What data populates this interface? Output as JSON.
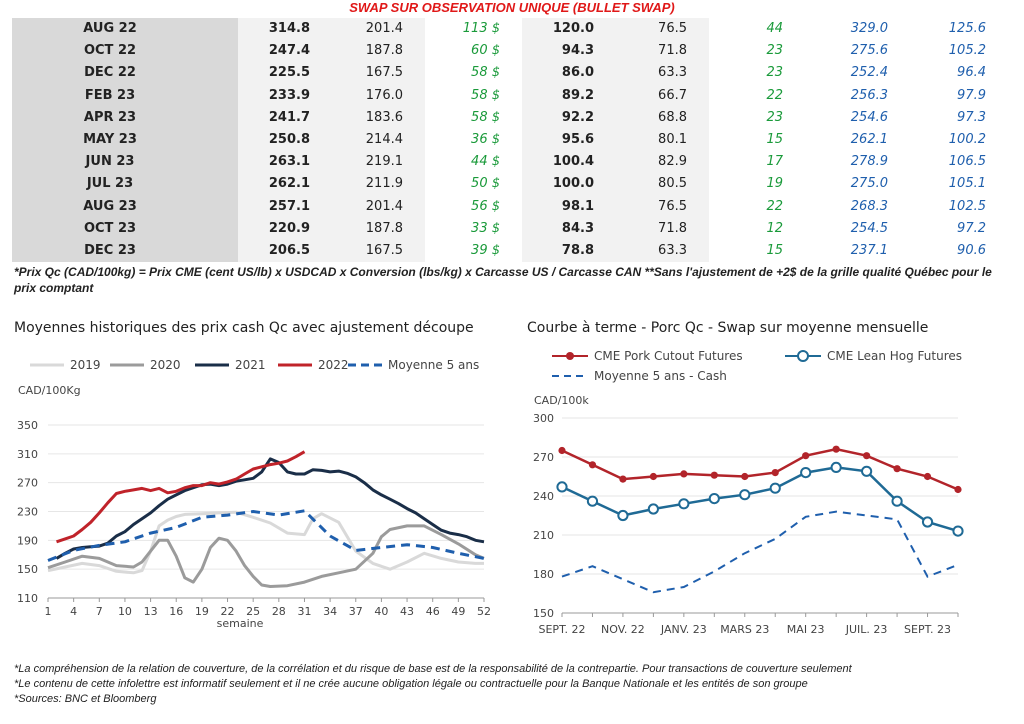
{
  "header": {
    "title": "SWAP SUR OBSERVATION UNIQUE (BULLET SWAP)",
    "note": "*Prix Qc (CAD/100kg) = Prix CME (cent US/lb) x USDCAD x Conversion (lbs/kg) x Carcasse US / Carcasse CAN **Sans l'ajustement de +2$ de la grille qualité Québec pour le prix comptant"
  },
  "table": {
    "rows": [
      [
        "AUG 22",
        "314.8",
        "201.4",
        "113 $",
        "120.0",
        "76.5",
        "44",
        "329.0",
        "125.6"
      ],
      [
        "OCT 22",
        "247.4",
        "187.8",
        "60 $",
        "94.3",
        "71.8",
        "23",
        "275.6",
        "105.2"
      ],
      [
        "DEC 22",
        "225.5",
        "167.5",
        "58 $",
        "86.0",
        "63.3",
        "23",
        "252.4",
        "96.4"
      ],
      [
        "FEB 23",
        "233.9",
        "176.0",
        "58 $",
        "89.2",
        "66.7",
        "22",
        "256.3",
        "97.9"
      ],
      [
        "APR 23",
        "241.7",
        "183.6",
        "58 $",
        "92.2",
        "68.8",
        "23",
        "254.6",
        "97.3"
      ],
      [
        "MAY 23",
        "250.8",
        "214.4",
        "36 $",
        "95.6",
        "80.1",
        "15",
        "262.1",
        "100.2"
      ],
      [
        "JUN 23",
        "263.1",
        "219.1",
        "44 $",
        "100.4",
        "82.9",
        "17",
        "278.9",
        "106.5"
      ],
      [
        "JUL 23",
        "262.1",
        "211.9",
        "50 $",
        "100.0",
        "80.5",
        "19",
        "275.0",
        "105.1"
      ],
      [
        "AUG 23",
        "257.1",
        "201.4",
        "56 $",
        "98.1",
        "76.5",
        "22",
        "268.3",
        "102.5"
      ],
      [
        "OCT 23",
        "220.9",
        "187.8",
        "33 $",
        "84.3",
        "71.8",
        "12",
        "254.5",
        "97.2"
      ],
      [
        "DEC 23",
        "206.5",
        "167.5",
        "39 $",
        "78.8",
        "63.3",
        "15",
        "237.1",
        "90.6"
      ]
    ]
  },
  "chart_data": [
    {
      "type": "line",
      "title": "Moyennes historiques des prix cash Qc avec ajustement découpe",
      "ylabel": "CAD/100Kg",
      "xlabel": "semaine",
      "ylim": [
        110,
        350
      ],
      "yticks": [
        "350",
        "310",
        "270",
        "230",
        "190",
        "150",
        "110"
      ],
      "xlim": [
        1,
        52
      ],
      "xticks": [
        "1",
        "4",
        "7",
        "10",
        "13",
        "16",
        "19",
        "22",
        "25",
        "28",
        "31",
        "34",
        "37",
        "40",
        "43",
        "46",
        "49",
        "52"
      ],
      "legend_position": "top",
      "grid": "horizontal",
      "series": [
        {
          "name": "2019",
          "color": "#d9d9d9",
          "dash": false,
          "x": [
            1,
            3,
            5,
            7,
            9,
            11,
            12,
            13,
            14,
            15,
            16,
            17,
            19,
            21,
            23,
            25,
            27,
            29,
            31,
            32,
            33,
            35,
            37,
            39,
            41,
            43,
            45,
            47,
            49,
            51,
            52
          ],
          "y": [
            148,
            153,
            158,
            155,
            147,
            145,
            148,
            175,
            210,
            218,
            223,
            226,
            227,
            228,
            229,
            222,
            214,
            200,
            198,
            220,
            227,
            215,
            175,
            158,
            150,
            160,
            172,
            165,
            160,
            158,
            158
          ]
        },
        {
          "name": "2020",
          "color": "#9b9b9b",
          "dash": false,
          "x": [
            1,
            3,
            5,
            7,
            9,
            11,
            12,
            13,
            14,
            15,
            16,
            17,
            18,
            19,
            20,
            21,
            22,
            23,
            24,
            25,
            26,
            27,
            29,
            31,
            33,
            35,
            37,
            39,
            40,
            41,
            43,
            45,
            47,
            49,
            51,
            52
          ],
          "y": [
            152,
            160,
            168,
            165,
            155,
            153,
            160,
            175,
            190,
            190,
            168,
            138,
            132,
            150,
            180,
            193,
            190,
            175,
            155,
            140,
            128,
            126,
            127,
            132,
            140,
            145,
            150,
            172,
            195,
            205,
            210,
            210,
            198,
            185,
            170,
            165
          ]
        },
        {
          "name": "2021",
          "color": "#1a2e48",
          "dash": false,
          "x": [
            2,
            3,
            4,
            5,
            6,
            7,
            8,
            9,
            10,
            11,
            12,
            13,
            14,
            15,
            16,
            17,
            18,
            19,
            20,
            21,
            22,
            23,
            24,
            25,
            26,
            27,
            28,
            29,
            30,
            31,
            32,
            33,
            34,
            35,
            36,
            37,
            38,
            39,
            40,
            41,
            42,
            43,
            44,
            45,
            46,
            47,
            48,
            49,
            50,
            51,
            52
          ],
          "y": [
            165,
            172,
            178,
            180,
            181,
            182,
            186,
            196,
            202,
            212,
            220,
            228,
            238,
            247,
            253,
            259,
            263,
            267,
            268,
            266,
            268,
            272,
            274,
            276,
            285,
            303,
            298,
            285,
            282,
            282,
            288,
            287,
            285,
            286,
            283,
            278,
            270,
            260,
            253,
            247,
            241,
            234,
            228,
            220,
            212,
            204,
            200,
            198,
            195,
            190,
            188
          ]
        },
        {
          "name": "2022",
          "color": "#c0232a",
          "dash": false,
          "x": [
            2,
            3,
            4,
            5,
            6,
            7,
            8,
            9,
            10,
            11,
            12,
            13,
            14,
            15,
            16,
            17,
            18,
            19,
            20,
            21,
            22,
            23,
            24,
            25,
            26,
            27,
            28,
            29,
            30,
            31
          ],
          "y": [
            188,
            192,
            196,
            205,
            215,
            228,
            242,
            255,
            258,
            260,
            262,
            259,
            262,
            256,
            258,
            263,
            266,
            266,
            270,
            268,
            271,
            275,
            282,
            289,
            292,
            295,
            297,
            300,
            306,
            313
          ]
        },
        {
          "name": "Moyenne 5 ans",
          "color": "#1f5fad",
          "dash": true,
          "x": [
            1,
            4,
            7,
            10,
            13,
            16,
            19,
            22,
            25,
            28,
            31,
            34,
            37,
            40,
            43,
            46,
            49,
            52
          ],
          "y": [
            162,
            176,
            183,
            188,
            200,
            208,
            222,
            225,
            230,
            225,
            231,
            196,
            176,
            180,
            184,
            180,
            172,
            165
          ]
        }
      ]
    },
    {
      "type": "line",
      "title": "Courbe à terme - Porc Qc - Swap sur moyenne mensuelle",
      "ylabel": "CAD/100k",
      "ylim": [
        150,
        300
      ],
      "yticks": [
        "300",
        "270",
        "240",
        "210",
        "180",
        "150"
      ],
      "categories": [
        "SEPT. 22",
        "OCT. 22",
        "NOV. 22",
        "DÉC. 22",
        "JANV. 23",
        "FÉVR. 23",
        "MARS 23",
        "AVR. 23",
        "MAI 23",
        "JUIN 23",
        "JUIL. 23",
        "AOÛT 23",
        "SEPT. 23",
        "OCT. 23"
      ],
      "xtick_labels": [
        "SEPT. 22",
        "NOV. 22",
        "JANV. 23",
        "MARS 23",
        "MAI 23",
        "JUIL. 23",
        "SEPT. 23"
      ],
      "legend_position": "top",
      "grid": "horizontal",
      "series": [
        {
          "name": "CME Pork Cutout Futures",
          "color": "#b2242a",
          "marker": "filled",
          "values": [
            275,
            264,
            253,
            255,
            257,
            256,
            255,
            258,
            271,
            276,
            271,
            261,
            255,
            245
          ]
        },
        {
          "name": "CME Lean Hog Futures",
          "color": "#1f6a95",
          "marker": "open",
          "values": [
            247,
            236,
            225,
            230,
            234,
            238,
            241,
            246,
            258,
            262,
            259,
            236,
            220,
            213
          ]
        },
        {
          "name": "Moyenne 5 ans - Cash",
          "color": "#1f5fad",
          "dash": true,
          "values": [
            178,
            186,
            176,
            166,
            170,
            182,
            196,
            207,
            224,
            228,
            225,
            222,
            178,
            187
          ]
        }
      ]
    }
  ],
  "footnotes": [
    "*La compréhension de la relation de couverture, de la corrélation et du risque de base est de la responsabilité de la contrepartie. Pour transactions de couverture seulement",
    "*Le contenu de cette infolettre est informatif seulement et il ne crée aucune obligation légale ou contractuelle pour la Banque Nationale et les entités de son groupe",
    "*Sources: BNC et Bloomberg"
  ]
}
